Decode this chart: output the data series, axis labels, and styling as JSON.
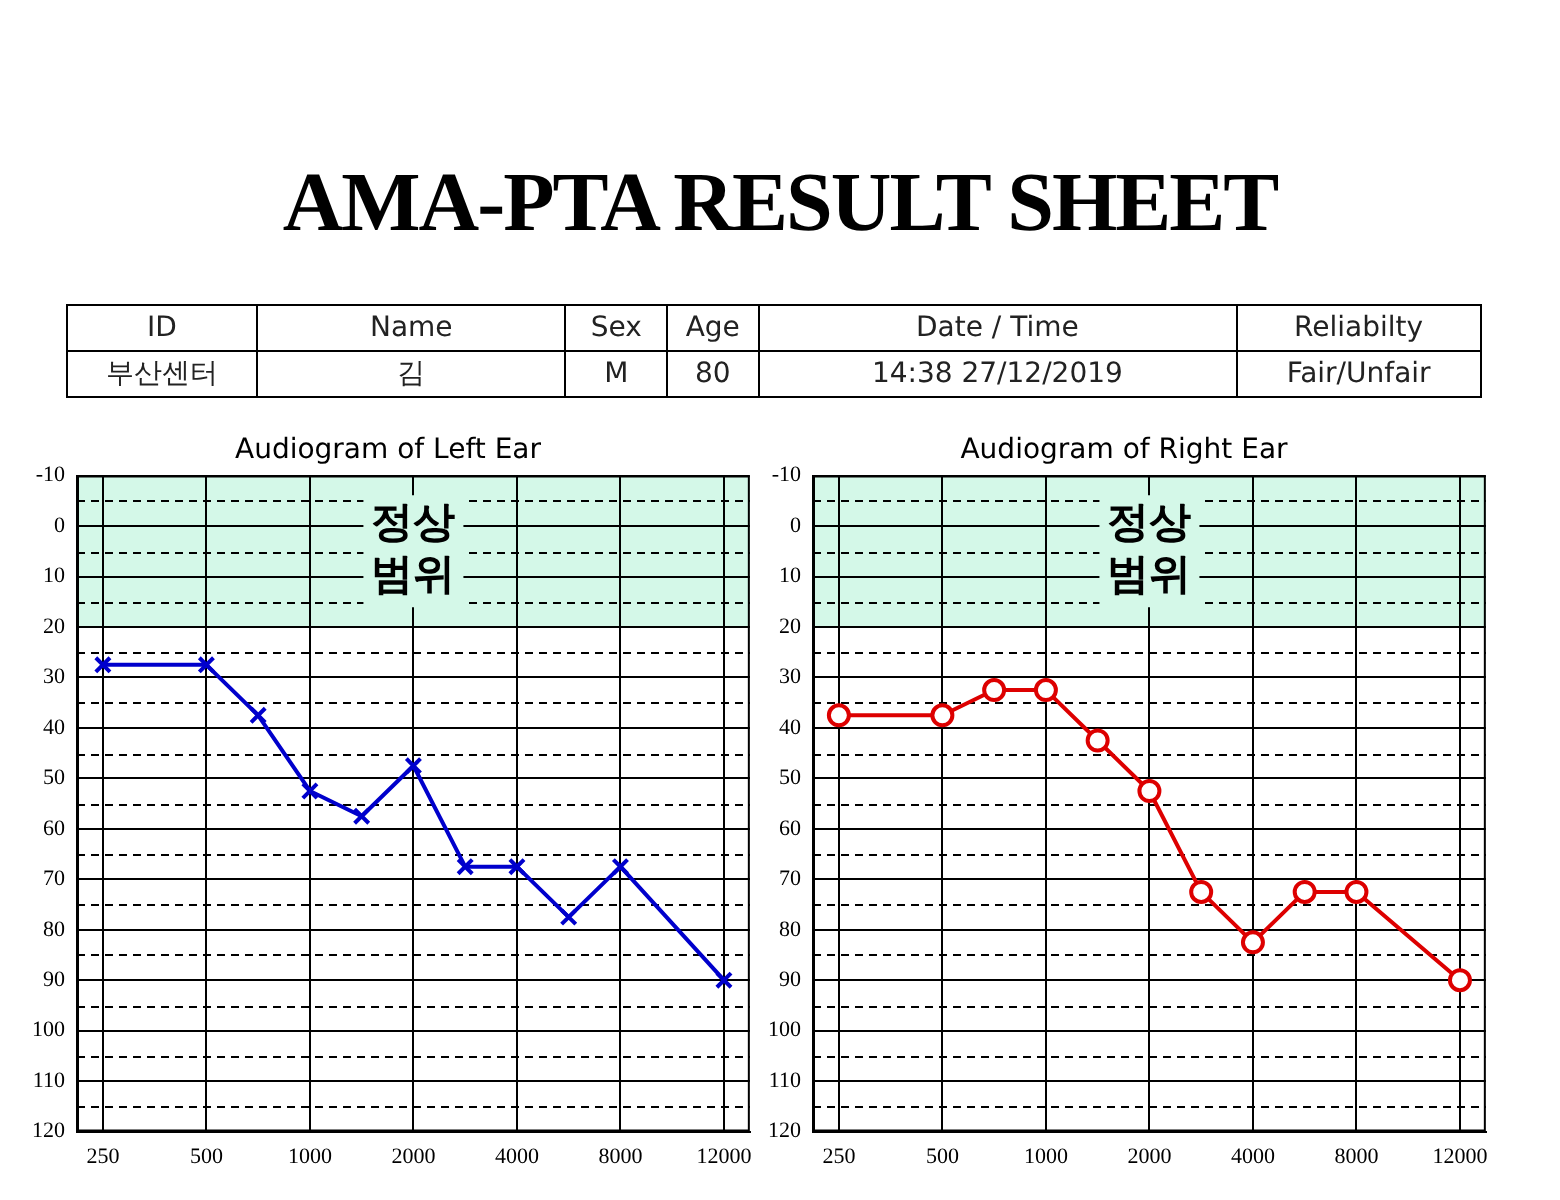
{
  "chart_data": [
    {
      "type": "other",
      "title": "AMA-PTA RESULT SHEET",
      "annotations": [
        "ID",
        "Name",
        "Sex",
        "Age",
        "Date / Time",
        "Reliabilty",
        "부산센터",
        "김",
        "M",
        "80",
        "14:38 27/12/2019",
        "Fair/Unfair"
      ]
    },
    {
      "type": "line",
      "title": "Audiogram of Left Ear",
      "categories": [
        "250",
        null,
        "500",
        null,
        "1000",
        null,
        "2000",
        null,
        "4000",
        null,
        "8000",
        null,
        "12000"
      ],
      "series": [
        {
          "color": "#0000cc",
          "values": [
            27.5,
            null,
            27.5,
            37.5,
            52.5,
            57.5,
            47.5,
            67.5,
            67.5,
            77.5,
            67.5,
            null,
            90
          ]
        }
      ],
      "ylim": [
        120,
        -10
      ],
      "yticks": [
        -10,
        {
          "value": -5,
          "label": null
        },
        0,
        {
          "value": 5,
          "label": null
        },
        10,
        {
          "value": 15,
          "label": null
        },
        20,
        {
          "value": 25,
          "label": null
        },
        30,
        {
          "value": 35,
          "label": null
        },
        40,
        {
          "value": 45,
          "label": null
        },
        50,
        {
          "value": 55,
          "label": null
        },
        60,
        {
          "value": 65,
          "label": null
        },
        70,
        {
          "value": 75,
          "label": null
        },
        80,
        {
          "value": 85,
          "label": null
        },
        90,
        {
          "value": 95,
          "label": null
        },
        100,
        {
          "value": 105,
          "label": null
        },
        110,
        {
          "value": 115,
          "label": null
        },
        120
      ],
      "bands": [
        {
          "axis": "y",
          "from": -10,
          "to": 20,
          "label": "정상\n범위",
          "color": "#d4f8e8"
        }
      ],
      "grid": true,
      "legend": false,
      "marker": "cross",
      "line_style": "solid"
    },
    {
      "type": "line",
      "title": "Audiogram of Right Ear",
      "categories": [
        "250",
        null,
        "500",
        null,
        "1000",
        null,
        "2000",
        null,
        "4000",
        null,
        "8000",
        null,
        "12000"
      ],
      "series": [
        {
          "color": "#dd0000",
          "values": [
            37.5,
            null,
            37.5,
            32.5,
            32.5,
            42.5,
            52.5,
            72.5,
            82.5,
            72.5,
            72.5,
            null,
            90
          ]
        }
      ],
      "ylim": [
        120,
        -10
      ],
      "yticks": [
        -10,
        {
          "value": -5,
          "label": null
        },
        0,
        {
          "value": 5,
          "label": null
        },
        10,
        {
          "value": 15,
          "label": null
        },
        20,
        {
          "value": 25,
          "label": null
        },
        30,
        {
          "value": 35,
          "label": null
        },
        40,
        {
          "value": 45,
          "label": null
        },
        50,
        {
          "value": 55,
          "label": null
        },
        60,
        {
          "value": 65,
          "label": null
        },
        70,
        {
          "value": 75,
          "label": null
        },
        80,
        {
          "value": 85,
          "label": null
        },
        90,
        {
          "value": 95,
          "label": null
        },
        100,
        {
          "value": 105,
          "label": null
        },
        110,
        {
          "value": 115,
          "label": null
        },
        120
      ],
      "bands": [
        {
          "axis": "y",
          "from": -10,
          "to": 20,
          "label": "정상\n범위",
          "color": "#d4f8e8"
        }
      ],
      "grid": true,
      "legend": false,
      "marker": "circle",
      "line_style": "solid"
    }
  ]
}
